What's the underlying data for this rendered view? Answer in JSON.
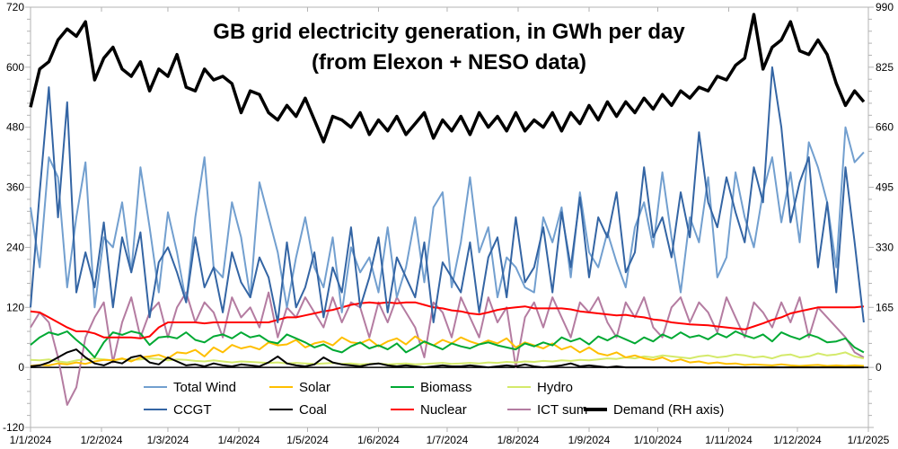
{
  "chart_data": {
    "type": "line",
    "title": [
      "GB grid electricity generation, in GWh per day",
      "(from Elexon + NESO data)"
    ],
    "xlabel": "",
    "ylabel_left": "",
    "ylabel_right": "",
    "x_range": [
      "1/1/2024",
      "1/1/2025"
    ],
    "x_ticks": [
      "1/1/2024",
      "1/2/2024",
      "1/3/2024",
      "1/4/2024",
      "1/5/2024",
      "1/6/2024",
      "1/7/2024",
      "1/8/2024",
      "1/9/2024",
      "1/10/2024",
      "1/11/2024",
      "1/12/2024",
      "1/1/2025"
    ],
    "x_tick_days": [
      0,
      31,
      60,
      91,
      121,
      152,
      182,
      213,
      244,
      274,
      305,
      335,
      366
    ],
    "ylim_left": [
      -120,
      720
    ],
    "y_ticks_left": [
      -120,
      0,
      120,
      240,
      360,
      480,
      600,
      720
    ],
    "ylim_right": [
      -165,
      990
    ],
    "y_ticks_right": [
      0,
      165,
      330,
      495,
      660,
      825,
      990
    ],
    "grid": false,
    "legend": "bottom",
    "sample_interval_days": 4,
    "series": [
      {
        "name": "Total Wind",
        "color": "#729fcf",
        "axis": "left",
        "width": 2,
        "values": [
          320,
          200,
          420,
          380,
          160,
          300,
          410,
          120,
          260,
          240,
          330,
          190,
          400,
          280,
          150,
          310,
          230,
          130,
          300,
          420,
          200,
          180,
          330,
          260,
          140,
          370,
          300,
          230,
          120,
          220,
          300,
          200,
          160,
          260,
          110,
          240,
          190,
          220,
          150,
          280,
          140,
          200,
          300,
          170,
          320,
          350,
          160,
          250,
          380,
          230,
          280,
          140,
          220,
          200,
          160,
          150,
          300,
          250,
          320,
          180,
          350,
          230,
          200,
          270,
          210,
          160,
          280,
          330,
          240,
          390,
          260,
          150,
          300,
          250,
          380,
          180,
          220,
          390,
          300,
          240,
          350,
          420,
          290,
          390,
          250,
          450,
          400,
          330,
          200,
          480,
          410,
          430
        ]
      },
      {
        "name": "CCGT",
        "color": "#3465a4",
        "axis": "left",
        "width": 2,
        "values": [
          120,
          350,
          560,
          300,
          530,
          150,
          230,
          160,
          290,
          120,
          260,
          190,
          270,
          100,
          210,
          240,
          190,
          130,
          260,
          160,
          200,
          110,
          230,
          170,
          140,
          220,
          180,
          90,
          250,
          120,
          160,
          230,
          100,
          200,
          150,
          280,
          120,
          180,
          260,
          110,
          220,
          180,
          140,
          250,
          90,
          210,
          180,
          150,
          250,
          110,
          220,
          260,
          140,
          300,
          170,
          200,
          280,
          150,
          310,
          200,
          340,
          180,
          300,
          260,
          350,
          190,
          230,
          400,
          260,
          300,
          220,
          350,
          260,
          470,
          330,
          280,
          380,
          310,
          250,
          400,
          330,
          600,
          480,
          290,
          370,
          420,
          200,
          330,
          150,
          400,
          250,
          90
        ]
      },
      {
        "name": "Solar",
        "color": "#ffbf00",
        "axis": "left",
        "width": 2,
        "values": [
          3,
          5,
          4,
          8,
          6,
          10,
          7,
          12,
          15,
          14,
          18,
          12,
          20,
          22,
          25,
          18,
          30,
          28,
          35,
          22,
          40,
          30,
          45,
          38,
          42,
          36,
          50,
          44,
          46,
          55,
          40,
          48,
          52,
          44,
          60,
          50,
          48,
          56,
          42,
          52,
          58,
          46,
          62,
          50,
          44,
          55,
          48,
          60,
          52,
          46,
          54,
          48,
          58,
          40,
          50,
          44,
          38,
          48,
          36,
          42,
          30,
          40,
          28,
          24,
          30,
          20,
          24,
          18,
          15,
          20,
          12,
          16,
          10,
          12,
          8,
          10,
          7,
          8,
          5,
          6,
          5,
          4,
          6,
          4,
          3,
          4,
          5,
          3,
          4,
          3,
          4,
          3
        ]
      },
      {
        "name": "Biomass",
        "color": "#00a933",
        "axis": "left",
        "width": 2,
        "values": [
          45,
          60,
          70,
          65,
          72,
          55,
          40,
          20,
          50,
          70,
          65,
          72,
          68,
          45,
          60,
          62,
          58,
          70,
          55,
          50,
          62,
          66,
          58,
          70,
          60,
          64,
          52,
          48,
          66,
          58,
          50,
          40,
          46,
          35,
          30,
          42,
          50,
          38,
          44,
          36,
          48,
          30,
          40,
          52,
          44,
          36,
          48,
          42,
          38,
          46,
          50,
          44,
          40,
          36,
          48,
          42,
          50,
          44,
          60,
          52,
          58,
          46,
          62,
          54,
          64,
          56,
          48,
          60,
          52,
          66,
          58,
          70,
          60,
          64,
          56,
          68,
          60,
          72,
          64,
          58,
          66,
          52,
          70,
          62,
          56,
          66,
          60,
          50,
          52,
          58,
          40,
          30
        ]
      },
      {
        "name": "Hydro",
        "color": "#d4ea6b",
        "axis": "left",
        "width": 2,
        "values": [
          15,
          14,
          16,
          12,
          10,
          14,
          16,
          18,
          16,
          14,
          17,
          15,
          16,
          18,
          17,
          14,
          16,
          15,
          13,
          12,
          14,
          12,
          10,
          12,
          11,
          10,
          9,
          10,
          8,
          9,
          8,
          7,
          8,
          9,
          7,
          8,
          6,
          7,
          8,
          6,
          7,
          8,
          6,
          7,
          8,
          9,
          7,
          8,
          9,
          8,
          10,
          9,
          11,
          10,
          12,
          11,
          13,
          12,
          14,
          13,
          15,
          14,
          16,
          18,
          17,
          20,
          18,
          22,
          20,
          24,
          22,
          20,
          18,
          22,
          24,
          20,
          22,
          26,
          24,
          20,
          22,
          18,
          24,
          26,
          20,
          22,
          28,
          24,
          26,
          30,
          22,
          18
        ]
      },
      {
        "name": "Coal",
        "color": "#000000",
        "axis": "left",
        "width": 2,
        "values": [
          2,
          4,
          10,
          20,
          30,
          36,
          20,
          8,
          4,
          12,
          8,
          20,
          24,
          10,
          6,
          20,
          12,
          4,
          6,
          2,
          8,
          4,
          2,
          6,
          4,
          2,
          10,
          22,
          8,
          4,
          2,
          6,
          20,
          10,
          6,
          4,
          2,
          6,
          8,
          4,
          2,
          4,
          2,
          0,
          2,
          4,
          2,
          2,
          4,
          2,
          0,
          2,
          4,
          2,
          6,
          2,
          0,
          2,
          4,
          8,
          2,
          4,
          2,
          0,
          2,
          0,
          0,
          0,
          0,
          0,
          0,
          0,
          0,
          0,
          0,
          0,
          0,
          0,
          0,
          0,
          0,
          0,
          0,
          0,
          0,
          0,
          0,
          0,
          0,
          0,
          0,
          0
        ]
      },
      {
        "name": "Nuclear",
        "color": "#ff0000",
        "axis": "left",
        "width": 2,
        "values": [
          112,
          110,
          100,
          90,
          80,
          72,
          72,
          68,
          60,
          60,
          60,
          60,
          58,
          62,
          80,
          90,
          90,
          90,
          90,
          88,
          90,
          90,
          90,
          90,
          90,
          90,
          90,
          95,
          100,
          100,
          104,
          108,
          112,
          115,
          120,
          125,
          128,
          130,
          128,
          130,
          128,
          130,
          130,
          125,
          120,
          118,
          114,
          112,
          108,
          106,
          110,
          115,
          118,
          120,
          122,
          118,
          118,
          118,
          118,
          116,
          112,
          110,
          108,
          106,
          104,
          105,
          102,
          100,
          96,
          94,
          90,
          88,
          86,
          85,
          84,
          82,
          80,
          78,
          76,
          82,
          88,
          95,
          100,
          108,
          112,
          116,
          120,
          120,
          120,
          120,
          120,
          122
        ]
      },
      {
        "name": "ICT sum",
        "color": "#b47ca1",
        "axis": "left",
        "width": 2,
        "values": [
          80,
          110,
          90,
          20,
          -75,
          -40,
          60,
          100,
          130,
          10,
          90,
          140,
          60,
          110,
          130,
          60,
          120,
          150,
          90,
          130,
          110,
          60,
          140,
          100,
          120,
          80,
          150,
          60,
          120,
          100,
          140,
          110,
          80,
          140,
          90,
          130,
          120,
          60,
          130,
          90,
          140,
          110,
          80,
          20,
          130,
          110,
          60,
          140,
          100,
          60,
          140,
          90,
          120,
          0,
          100,
          130,
          80,
          140,
          100,
          60,
          130,
          110,
          140,
          90,
          60,
          130,
          100,
          140,
          80,
          60,
          120,
          140,
          90,
          130,
          110,
          70,
          140,
          100,
          60,
          130,
          110,
          80,
          130,
          90,
          140,
          60,
          120,
          100,
          80,
          60,
          30,
          20
        ]
      },
      {
        "name": "Demand (RH axis)",
        "color": "#000000",
        "axis": "right",
        "width": 3.5,
        "values": [
          715,
          820,
          840,
          900,
          930,
          910,
          950,
          790,
          850,
          880,
          820,
          800,
          840,
          760,
          820,
          800,
          860,
          770,
          760,
          820,
          790,
          800,
          780,
          700,
          760,
          750,
          700,
          680,
          720,
          690,
          740,
          680,
          620,
          690,
          680,
          660,
          700,
          640,
          680,
          650,
          690,
          640,
          670,
          700,
          630,
          680,
          650,
          690,
          640,
          700,
          660,
          690,
          650,
          700,
          650,
          680,
          660,
          700,
          650,
          700,
          670,
          720,
          680,
          730,
          690,
          730,
          700,
          740,
          710,
          750,
          720,
          760,
          740,
          770,
          760,
          800,
          790,
          830,
          850,
          970,
          820,
          880,
          900,
          950,
          870,
          860,
          900,
          860,
          780,
          720,
          760,
          730
        ]
      }
    ]
  }
}
